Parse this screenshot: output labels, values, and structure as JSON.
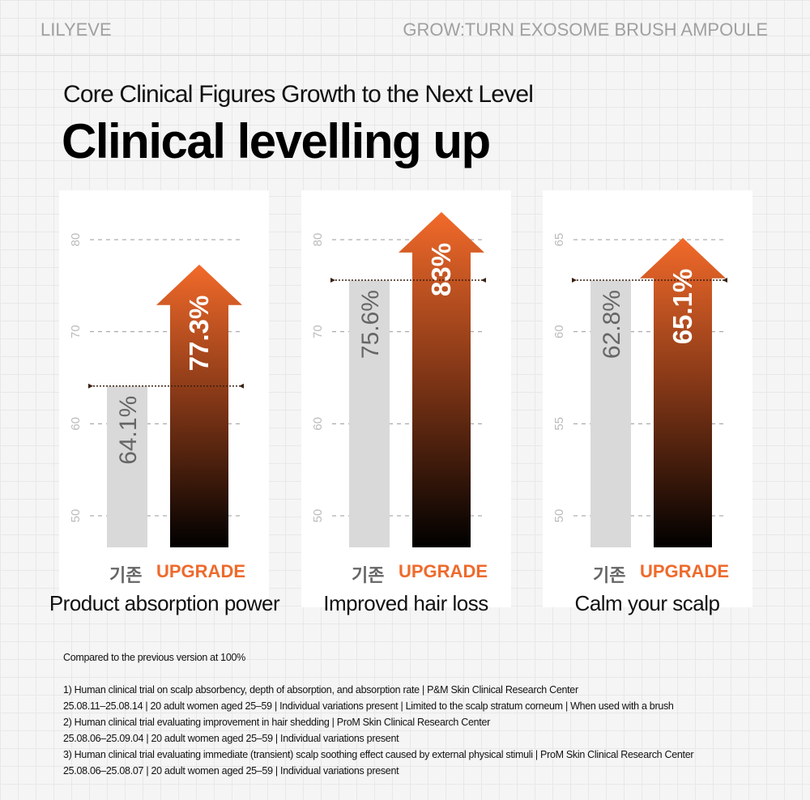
{
  "header": {
    "brand": "LILYEVE",
    "product": "GROW:TURN EXOSOME BRUSH AMPOULE"
  },
  "subtitle": "Core Clinical Figures Growth to the Next Level",
  "title": "Clinical levelling up",
  "chart_data": [
    {
      "type": "bar",
      "title": "Product absorption power",
      "categories": [
        "기존",
        "UPGRADE"
      ],
      "values": [
        64.1,
        77.3
      ],
      "value_labels": [
        "64.1%",
        "77.3%"
      ],
      "yticks": [
        50,
        60,
        70,
        80
      ],
      "ylim": [
        46.6,
        85
      ]
    },
    {
      "type": "bar",
      "title": "Improved hair loss",
      "categories": [
        "기존",
        "UPGRADE"
      ],
      "values": [
        75.6,
        83
      ],
      "value_labels": [
        "75.6%",
        "83%"
      ],
      "yticks": [
        50,
        60,
        70,
        80
      ],
      "ylim": [
        46.6,
        85
      ]
    },
    {
      "type": "bar",
      "title": "Calm your scalp",
      "categories": [
        "기존",
        "UPGRADE"
      ],
      "values": [
        62.8,
        65.1
      ],
      "value_labels": [
        "62.8%",
        "65.1%"
      ],
      "yticks": [
        50,
        55,
        60,
        65
      ],
      "ylim": [
        48.3,
        67.5
      ]
    }
  ],
  "colors": {
    "accent": "#ee6a2c",
    "base": "#d9d9d9"
  },
  "notes": [
    "Compared to the previous version at 100%",
    "1) Human clinical trial on scalp absorbency, depth of absorption, and absorption rate | P&M Skin Clinical Research Center",
    "25.08.11–25.08.14 | 20 adult women aged 25–59 | Individual variations present | Limited to the scalp stratum corneum | When used with a brush",
    "2) Human clinical trial evaluating improvement in hair shedding | ProM Skin Clinical Research Center",
    "25.08.06–25.09.04 | 20 adult women aged 25–59 | Individual variations present",
    "3) Human clinical trial evaluating immediate (transient) scalp soothing effect caused by external physical stimuli | ProM Skin Clinical Research Center",
    "25.08.06–25.08.07 | 20 adult women aged 25–59 | Individual variations present"
  ]
}
